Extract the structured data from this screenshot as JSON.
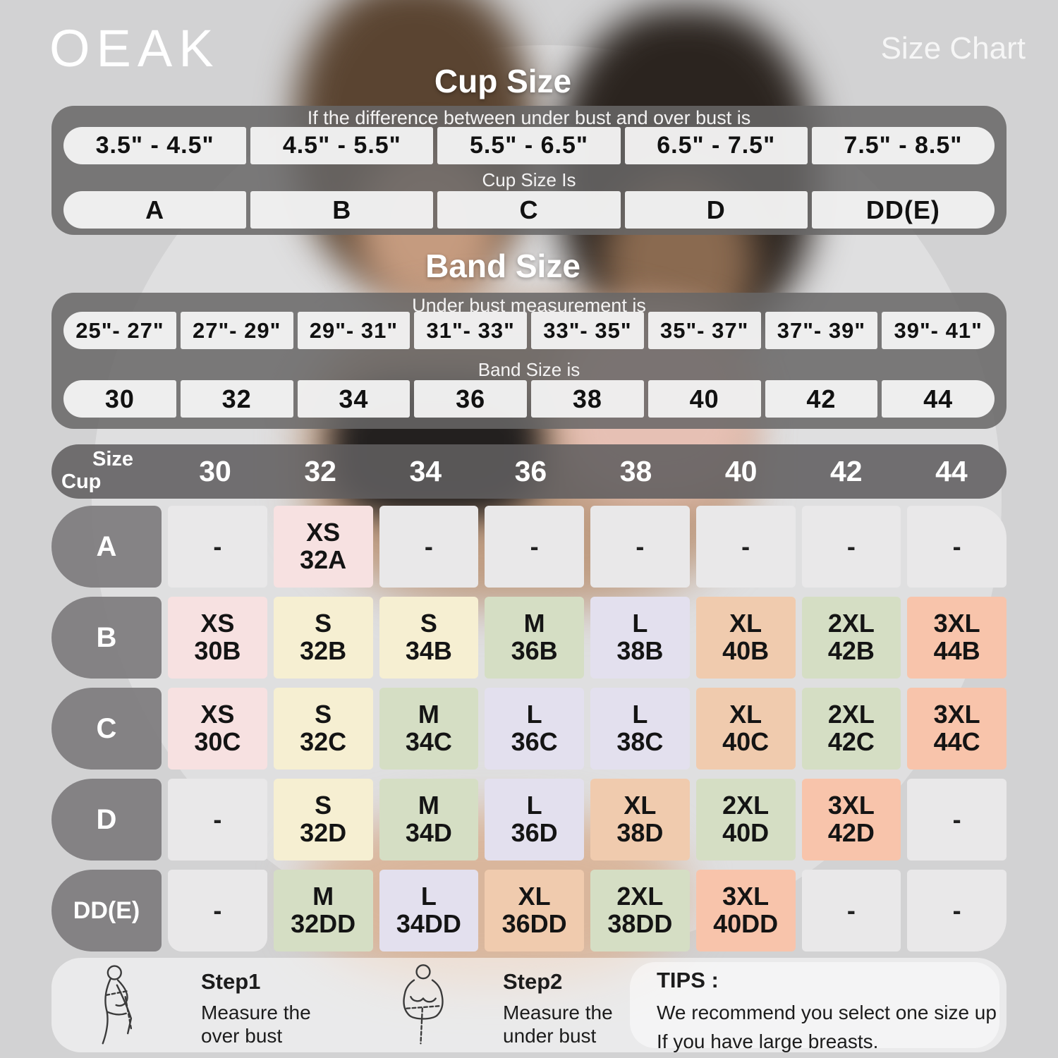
{
  "brand": "OEAK",
  "page_title": "Size Chart",
  "colors": {
    "pink": "#f7e1e1",
    "cream": "#f6efd2",
    "green": "#d5dec4",
    "lavender": "#e3e0ee",
    "peach": "#f0cbae",
    "salmon": "#f8c4ab",
    "empty": "#e9e8e9"
  },
  "cup_size_section": {
    "title": "Cup Size",
    "row1_header": "If the  difference between under bust and over bust is",
    "ranges": [
      "3.5\" -  4.5\"",
      "4.5\" -  5.5\"",
      "5.5\" -  6.5\"",
      "6.5\" -  7.5\"",
      "7.5\" -  8.5\""
    ],
    "row2_header": "Cup Size Is",
    "cups": [
      "A",
      "B",
      "C",
      "D",
      "DD(E)"
    ]
  },
  "band_size_section": {
    "title": "Band Size",
    "row1_header": "Under bust measurement is",
    "ranges": [
      "25\"- 27\"",
      "27\"- 29\"",
      "29\"- 31\"",
      "31\"- 33\"",
      "33\"- 35\"",
      "35\"- 37\"",
      "37\"- 39\"",
      "39\"- 41\""
    ],
    "row2_header": "Band Size is",
    "bands": [
      "30",
      "32",
      "34",
      "36",
      "38",
      "40",
      "42",
      "44"
    ]
  },
  "matrix": {
    "corner": {
      "top": "Size",
      "bottom": "Cup"
    },
    "columns": [
      "30",
      "32",
      "34",
      "36",
      "38",
      "40",
      "42",
      "44"
    ],
    "rows": [
      {
        "cup": "A",
        "cells": [
          {
            "size": "-"
          },
          {
            "size": "XS",
            "code": "32A",
            "color": "pink"
          },
          {
            "size": "-"
          },
          {
            "size": "-"
          },
          {
            "size": "-"
          },
          {
            "size": "-"
          },
          {
            "size": "-"
          },
          {
            "size": "-"
          }
        ]
      },
      {
        "cup": "B",
        "cells": [
          {
            "size": "XS",
            "code": "30B",
            "color": "pink"
          },
          {
            "size": "S",
            "code": "32B",
            "color": "cream"
          },
          {
            "size": "S",
            "code": "34B",
            "color": "cream"
          },
          {
            "size": "M",
            "code": "36B",
            "color": "green"
          },
          {
            "size": "L",
            "code": "38B",
            "color": "lavender"
          },
          {
            "size": "XL",
            "code": "40B",
            "color": "peach"
          },
          {
            "size": "2XL",
            "code": "42B",
            "color": "green"
          },
          {
            "size": "3XL",
            "code": "44B",
            "color": "salmon"
          }
        ]
      },
      {
        "cup": "C",
        "cells": [
          {
            "size": "XS",
            "code": "30C",
            "color": "pink"
          },
          {
            "size": "S",
            "code": "32C",
            "color": "cream"
          },
          {
            "size": "M",
            "code": "34C",
            "color": "green"
          },
          {
            "size": "L",
            "code": "36C",
            "color": "lavender"
          },
          {
            "size": "L",
            "code": "38C",
            "color": "lavender"
          },
          {
            "size": "XL",
            "code": "40C",
            "color": "peach"
          },
          {
            "size": "2XL",
            "code": "42C",
            "color": "green"
          },
          {
            "size": "3XL",
            "code": "44C",
            "color": "salmon"
          }
        ]
      },
      {
        "cup": "D",
        "cells": [
          {
            "size": "-"
          },
          {
            "size": "S",
            "code": "32D",
            "color": "cream"
          },
          {
            "size": "M",
            "code": "34D",
            "color": "green"
          },
          {
            "size": "L",
            "code": "36D",
            "color": "lavender"
          },
          {
            "size": "XL",
            "code": "38D",
            "color": "peach"
          },
          {
            "size": "2XL",
            "code": "40D",
            "color": "green"
          },
          {
            "size": "3XL",
            "code": "42D",
            "color": "salmon"
          },
          {
            "size": "-"
          }
        ]
      },
      {
        "cup": "DD(E)",
        "cells": [
          {
            "size": "-"
          },
          {
            "size": "M",
            "code": "32DD",
            "color": "green"
          },
          {
            "size": "L",
            "code": "34DD",
            "color": "lavender"
          },
          {
            "size": "XL",
            "code": "36DD",
            "color": "peach"
          },
          {
            "size": "2XL",
            "code": "38DD",
            "color": "green"
          },
          {
            "size": "3XL",
            "code": "40DD",
            "color": "salmon"
          },
          {
            "size": "-"
          },
          {
            "size": "-"
          }
        ]
      }
    ]
  },
  "footer": {
    "steps": [
      {
        "label": "Step1",
        "lines": [
          "Measure the",
          "over bust"
        ]
      },
      {
        "label": "Step2",
        "lines": [
          "Measure the",
          "under bust"
        ]
      }
    ],
    "tips": {
      "label": "TIPS :",
      "lines": [
        "We recommend you select one size up",
        "If you have large breasts."
      ]
    }
  }
}
